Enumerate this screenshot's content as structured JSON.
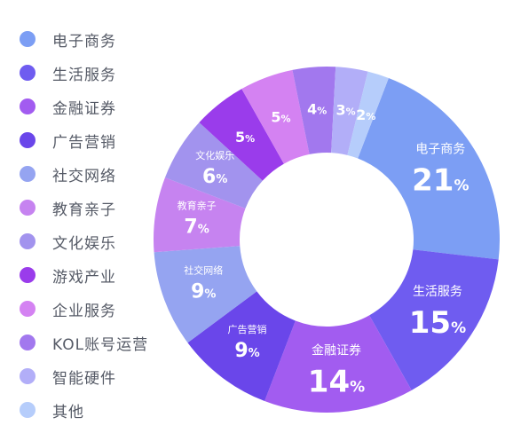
{
  "chart_data": {
    "type": "pie",
    "categories": [
      "电子商务",
      "生活服务",
      "金融证券",
      "广告营销",
      "社交网络",
      "教育亲子",
      "文化娱乐",
      "游戏产业",
      "企业服务",
      "KOL账号运营",
      "智能硬件",
      "其他"
    ],
    "values": [
      21,
      15,
      14,
      9,
      9,
      7,
      6,
      5,
      5,
      4,
      3,
      2
    ],
    "value_labels": [
      "21%",
      "15%",
      "14%",
      "9%",
      "9%",
      "7%",
      "6%",
      "5%",
      "5%",
      "4%",
      "3%",
      "2%"
    ],
    "slice_names_shown": [
      "电子商务",
      "生活服务",
      "金融证券",
      "广告营销",
      "社交网络",
      "教育亲子",
      "文化娱乐",
      "",
      "",
      "",
      "",
      ""
    ],
    "colors": [
      "#7c9ef4",
      "#6f5cf0",
      "#a25cf0",
      "#6a46ea",
      "#95a4f1",
      "#c683f0",
      "#a293ee",
      "#9a3ceb",
      "#d482f2",
      "#a278ee",
      "#b2aef8",
      "#b6cdfb"
    ],
    "donut": true,
    "legend_position": "left"
  }
}
